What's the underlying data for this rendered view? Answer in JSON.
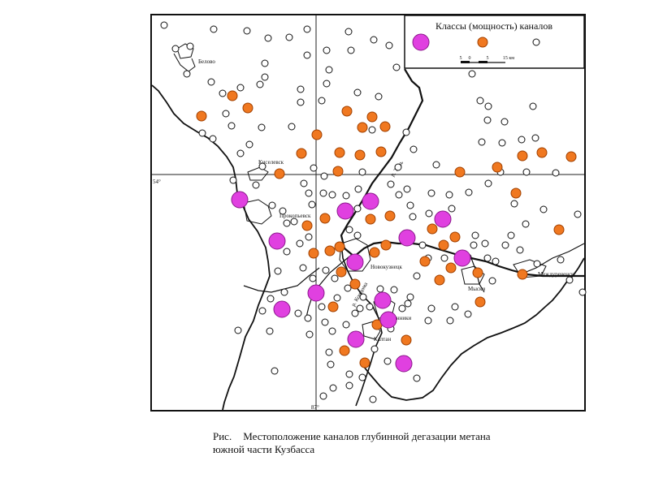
{
  "legend": {
    "title": "Классы (мощность) каналов",
    "scale_ticks": [
      "5",
      "0",
      "5",
      "15 км"
    ]
  },
  "caption": {
    "label": "Рис.",
    "line1": "Местоположение каналов глубинной дегазации метана",
    "line2": "южной части Кузбасса"
  },
  "grid_labels": {
    "lat_left": "54°",
    "lon_bottom": "87°"
  },
  "places": {
    "belovo": "Белово",
    "kiselevsk": "Киселевск",
    "prokopievsk": "Прокопьевск",
    "novokuznetsk": "Новокузнецк",
    "osinniki": "Осинники",
    "kaltan": "Калтан",
    "myski": "Мыски",
    "mezhdurechensk": "Междуреченск",
    "river_tom": "р. Томь",
    "river_kondoma": "р. Кондома"
  },
  "colors": {
    "large_channel": "#e040e0",
    "medium_channel": "#f07820",
    "small_channel": "#ffffff",
    "line": "#111111"
  },
  "channels": {
    "large": [
      [
        295,
        246
      ],
      [
        341,
        297
      ],
      [
        425,
        260
      ],
      [
        456,
        248
      ],
      [
        437,
        323
      ],
      [
        501,
        293
      ],
      [
        545,
        270
      ],
      [
        569,
        318
      ],
      [
        389,
        361
      ],
      [
        347,
        381
      ],
      [
        471,
        370
      ],
      [
        478,
        394
      ],
      [
        438,
        418
      ],
      [
        497,
        448
      ]
    ],
    "medium": [
      [
        286,
        118
      ],
      [
        248,
        143
      ],
      [
        305,
        133
      ],
      [
        390,
        166
      ],
      [
        427,
        137
      ],
      [
        458,
        144
      ],
      [
        446,
        157
      ],
      [
        474,
        156
      ],
      [
        371,
        189
      ],
      [
        418,
        188
      ],
      [
        469,
        187
      ],
      [
        443,
        191
      ],
      [
        416,
        211
      ],
      [
        344,
        214
      ],
      [
        566,
        212
      ],
      [
        612,
        206
      ],
      [
        643,
        192
      ],
      [
        667,
        188
      ],
      [
        703,
        193
      ],
      [
        635,
        238
      ],
      [
        688,
        283
      ],
      [
        378,
        278
      ],
      [
        400,
        269
      ],
      [
        456,
        270
      ],
      [
        480,
        266
      ],
      [
        532,
        282
      ],
      [
        560,
        292
      ],
      [
        546,
        302
      ],
      [
        475,
        302
      ],
      [
        461,
        311
      ],
      [
        418,
        304
      ],
      [
        406,
        309
      ],
      [
        386,
        312
      ],
      [
        523,
        322
      ],
      [
        541,
        345
      ],
      [
        555,
        330
      ],
      [
        588,
        336
      ],
      [
        643,
        338
      ],
      [
        437,
        350
      ],
      [
        420,
        335
      ],
      [
        410,
        378
      ],
      [
        464,
        400
      ],
      [
        500,
        419
      ],
      [
        424,
        432
      ],
      [
        449,
        447
      ],
      [
        591,
        372
      ]
    ],
    "small": [
      [
        202,
        31
      ],
      [
        216,
        60
      ],
      [
        234,
        57
      ],
      [
        263,
        36
      ],
      [
        304,
        38
      ],
      [
        330,
        47
      ],
      [
        356,
        46
      ],
      [
        378,
        36
      ],
      [
        429,
        39
      ],
      [
        460,
        49
      ],
      [
        479,
        56
      ],
      [
        488,
        83
      ],
      [
        432,
        62
      ],
      [
        402,
        62
      ],
      [
        378,
        68
      ],
      [
        326,
        78
      ],
      [
        326,
        95
      ],
      [
        320,
        104
      ],
      [
        296,
        108
      ],
      [
        274,
        115
      ],
      [
        260,
        101
      ],
      [
        230,
        91
      ],
      [
        278,
        140
      ],
      [
        285,
        155
      ],
      [
        249,
        164
      ],
      [
        262,
        171
      ],
      [
        322,
        157
      ],
      [
        359,
        156
      ],
      [
        370,
        110
      ],
      [
        370,
        126
      ],
      [
        396,
        124
      ],
      [
        402,
        103
      ],
      [
        405,
        86
      ],
      [
        440,
        114
      ],
      [
        466,
        119
      ],
      [
        458,
        160
      ],
      [
        500,
        163
      ],
      [
        509,
        184
      ],
      [
        537,
        203
      ],
      [
        490,
        206
      ],
      [
        446,
        212
      ],
      [
        399,
        217
      ],
      [
        386,
        207
      ],
      [
        323,
        205
      ],
      [
        296,
        189
      ],
      [
        307,
        178
      ],
      [
        287,
        222
      ],
      [
        315,
        228
      ],
      [
        380,
        238
      ],
      [
        409,
        240
      ],
      [
        426,
        241
      ],
      [
        441,
        233
      ],
      [
        481,
        227
      ],
      [
        501,
        233
      ],
      [
        531,
        238
      ],
      [
        553,
        240
      ],
      [
        577,
        237
      ],
      [
        601,
        226
      ],
      [
        616,
        212
      ],
      [
        648,
        212
      ],
      [
        684,
        213
      ],
      [
        711,
        264
      ],
      [
        669,
        258
      ],
      [
        633,
        251
      ],
      [
        647,
        276
      ],
      [
        629,
        290
      ],
      [
        622,
        302
      ],
      [
        640,
        308
      ],
      [
        661,
        325
      ],
      [
        690,
        320
      ],
      [
        701,
        345
      ],
      [
        717,
        360
      ],
      [
        581,
        91
      ],
      [
        591,
        124
      ],
      [
        601,
        131
      ],
      [
        600,
        148
      ],
      [
        621,
        150
      ],
      [
        656,
        131
      ],
      [
        659,
        170
      ],
      [
        642,
        172
      ],
      [
        618,
        176
      ],
      [
        593,
        175
      ],
      [
        374,
        226
      ],
      [
        335,
        253
      ],
      [
        348,
        260
      ],
      [
        362,
        273
      ],
      [
        353,
        275
      ],
      [
        398,
        238
      ],
      [
        384,
        252
      ],
      [
        380,
        292
      ],
      [
        369,
        300
      ],
      [
        353,
        310
      ],
      [
        342,
        334
      ],
      [
        373,
        330
      ],
      [
        385,
        343
      ],
      [
        401,
        333
      ],
      [
        412,
        343
      ],
      [
        430,
        283
      ],
      [
        440,
        290
      ],
      [
        440,
        257
      ],
      [
        491,
        240
      ],
      [
        505,
        253
      ],
      [
        508,
        267
      ],
      [
        528,
        263
      ],
      [
        556,
        257
      ],
      [
        520,
        302
      ],
      [
        527,
        318
      ],
      [
        513,
        340
      ],
      [
        547,
        318
      ],
      [
        576,
        317
      ],
      [
        583,
        302
      ],
      [
        585,
        290
      ],
      [
        597,
        300
      ],
      [
        600,
        318
      ],
      [
        610,
        322
      ],
      [
        606,
        346
      ],
      [
        560,
        378
      ],
      [
        576,
        387
      ],
      [
        554,
        395
      ],
      [
        502,
        374
      ],
      [
        505,
        366
      ],
      [
        531,
        380
      ],
      [
        527,
        395
      ],
      [
        495,
        380
      ],
      [
        485,
        357
      ],
      [
        455,
        378
      ],
      [
        447,
        366
      ],
      [
        428,
        355
      ],
      [
        415,
        367
      ],
      [
        400,
        397
      ],
      [
        409,
        408
      ],
      [
        405,
        434
      ],
      [
        437,
        386
      ],
      [
        443,
        380
      ],
      [
        468,
        356
      ],
      [
        481,
        405
      ],
      [
        426,
        400
      ],
      [
        379,
        392
      ],
      [
        381,
        412
      ],
      [
        367,
        386
      ],
      [
        396,
        378
      ],
      [
        350,
        360
      ],
      [
        333,
        368
      ],
      [
        323,
        383
      ],
      [
        332,
        408
      ],
      [
        338,
        457
      ],
      [
        293,
        407
      ],
      [
        407,
        449
      ],
      [
        430,
        461
      ],
      [
        410,
        478
      ],
      [
        430,
        475
      ],
      [
        446,
        465
      ],
      [
        459,
        492
      ],
      [
        461,
        430
      ],
      [
        477,
        445
      ],
      [
        513,
        466
      ],
      [
        398,
        488
      ]
    ]
  }
}
